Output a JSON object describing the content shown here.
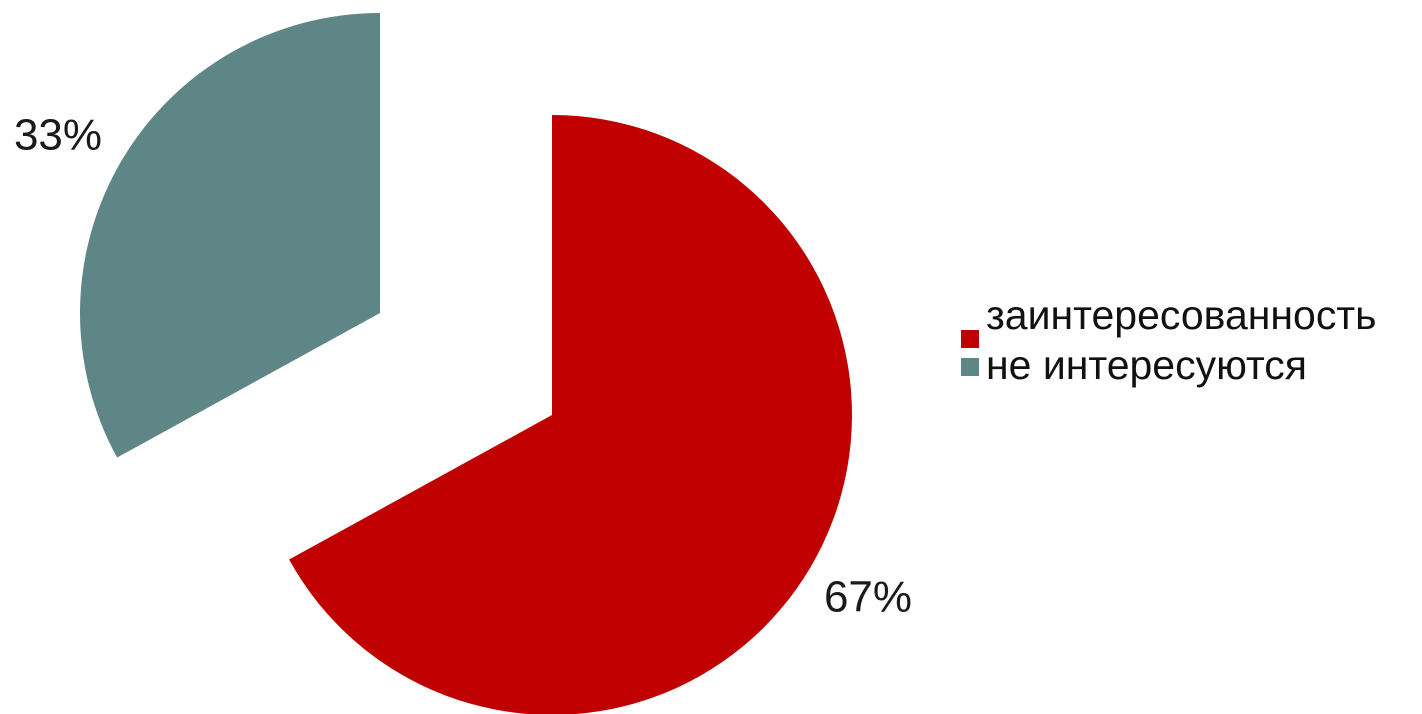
{
  "chart_data": {
    "type": "pie",
    "categories": [
      "заинтересованность",
      "не интересуются"
    ],
    "values": [
      67,
      33
    ],
    "data_labels": [
      "67%",
      "33%"
    ],
    "colors": [
      "#c00000",
      "#5f8687"
    ],
    "exploded": true,
    "start_angle": "12 o'clock",
    "direction": "clockwise",
    "legend_position": "right"
  },
  "legend": {
    "items": [
      {
        "label": "заинтересованность",
        "color": "#c00000"
      },
      {
        "label": "не интересуются",
        "color": "#5f8687"
      }
    ]
  }
}
